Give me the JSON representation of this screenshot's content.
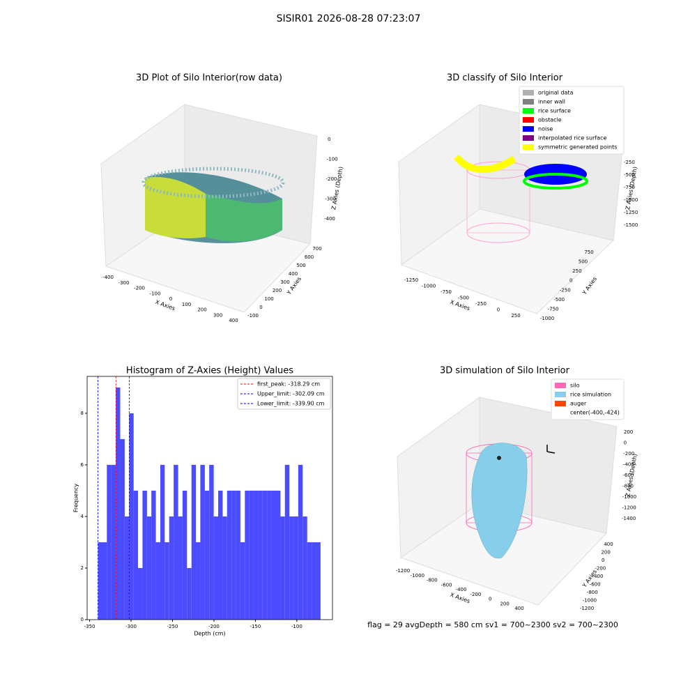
{
  "title": "SISIR01 2026-08-28 07:23:07",
  "footer": "flag = 29  avgDepth = 580 cm  sv1 = 700~2300  sv2 = 700~2300",
  "chart_data": [
    {
      "type": "scatter3d",
      "title": "3D Plot of Silo Interior(row data)",
      "xlabel": "X Axies",
      "ylabel": "Y Axies",
      "zlabel": "Z Axies (Depth)",
      "xticks": [
        -400,
        -300,
        -200,
        -100,
        0,
        100,
        200,
        300,
        400
      ],
      "yticks": [
        -100,
        0,
        100,
        200,
        300,
        400,
        500,
        600,
        700
      ],
      "zticks": [
        0,
        -100,
        -200,
        -300,
        -400
      ]
    },
    {
      "type": "scatter3d",
      "title": "3D classify of Silo Interior",
      "xlabel": "X Axies",
      "ylabel": "Y Axies",
      "zlabel": "Z Axies (Depth)",
      "xticks": [
        -1250,
        -1000,
        -750,
        -500,
        -250,
        0,
        250
      ],
      "yticks": [
        -1000,
        -750,
        -500,
        -250,
        0,
        250,
        500,
        750
      ],
      "zticks": [
        -250,
        -500,
        -750,
        -1000,
        -1250,
        -1500
      ],
      "legend": [
        {
          "name": "original data",
          "color": "#b0b0b0"
        },
        {
          "name": "inner wall",
          "color": "#808080"
        },
        {
          "name": "rice surface",
          "color": "#00ff00"
        },
        {
          "name": "obstacle",
          "color": "#ff0000"
        },
        {
          "name": "noise",
          "color": "#0000ff"
        },
        {
          "name": "interpolated rice surface",
          "color": "#800080"
        },
        {
          "name": "symmetric generated points",
          "color": "#ffff00"
        }
      ]
    },
    {
      "type": "histogram",
      "title": "Histogram of Z-Axies (Height) Values",
      "xlabel": "Depth (cm)",
      "ylabel": "Frequency",
      "color": "#4b4bff",
      "bins": [
        -339.9,
        -334.5,
        -329.2,
        -323.8,
        -318.4,
        -313.1,
        -307.7,
        -302.3,
        -296.9,
        -291.6,
        -286.2,
        -280.8,
        -275.5,
        -270.1,
        -264.7,
        -259.4,
        -254.0,
        -248.6,
        -243.2,
        -237.9,
        -232.5,
        -227.1,
        -221.8,
        -216.4,
        -211.0,
        -205.7,
        -200.3,
        -194.9,
        -189.5,
        -184.2,
        -178.8,
        -173.4,
        -168.1,
        -162.7,
        -157.3,
        -152.0,
        -146.6,
        -141.2,
        -135.8,
        -130.5,
        -125.1,
        -119.7,
        -114.4,
        -109.0,
        -103.6,
        -98.3,
        -92.9,
        -87.5,
        -82.1,
        -76.8,
        -71.4
      ],
      "values": [
        3,
        3,
        6,
        6,
        9,
        7,
        4,
        8,
        5,
        2,
        5,
        4,
        5,
        3,
        6,
        3,
        4,
        6,
        4,
        5,
        2,
        6,
        3,
        6,
        5,
        6,
        4,
        5,
        4,
        5,
        5,
        5,
        3,
        5,
        5,
        5,
        5,
        5,
        5,
        5,
        5,
        4,
        6,
        4,
        4,
        6,
        4,
        3,
        3,
        3
      ],
      "xlim": [
        -353,
        -57
      ],
      "ylim": [
        0,
        9.43
      ],
      "xticks": [
        -350,
        -300,
        -250,
        -200,
        -150,
        -100
      ],
      "yticks": [
        0,
        2,
        4,
        6,
        8
      ],
      "lines": [
        {
          "name": "first_peak: -318.29 cm",
          "value": -318.29,
          "color": "#ff0000"
        },
        {
          "name": "Upper_limit: -302.09 cm",
          "value": -302.09,
          "color": "#0000ff"
        },
        {
          "name": "Lower_limit: -339.90 cm",
          "value": -339.9,
          "color": "#0000ff"
        }
      ]
    },
    {
      "type": "surface3d",
      "title": "3D simulation of Silo Interior",
      "xlabel": "X Axies",
      "ylabel": "Y Axies",
      "zlabel": "Z Axies (Depth)",
      "xticks": [
        -1200,
        -1000,
        -800,
        -600,
        -400,
        -200,
        0,
        200,
        400
      ],
      "yticks": [
        400,
        200,
        0,
        -200,
        -400,
        -600,
        -800,
        -1000,
        -1200
      ],
      "zticks": [
        200,
        0,
        -200,
        -400,
        -600,
        -800,
        -1000,
        -1200,
        -1400
      ],
      "legend": [
        {
          "name": "silo",
          "color": "#ff69b4"
        },
        {
          "name": "rice simulation",
          "color": "#87ceeb"
        },
        {
          "name": "auger",
          "color": "#ff4500"
        },
        {
          "name": "center(-400,-424)",
          "color": "#ffffff"
        }
      ]
    }
  ]
}
